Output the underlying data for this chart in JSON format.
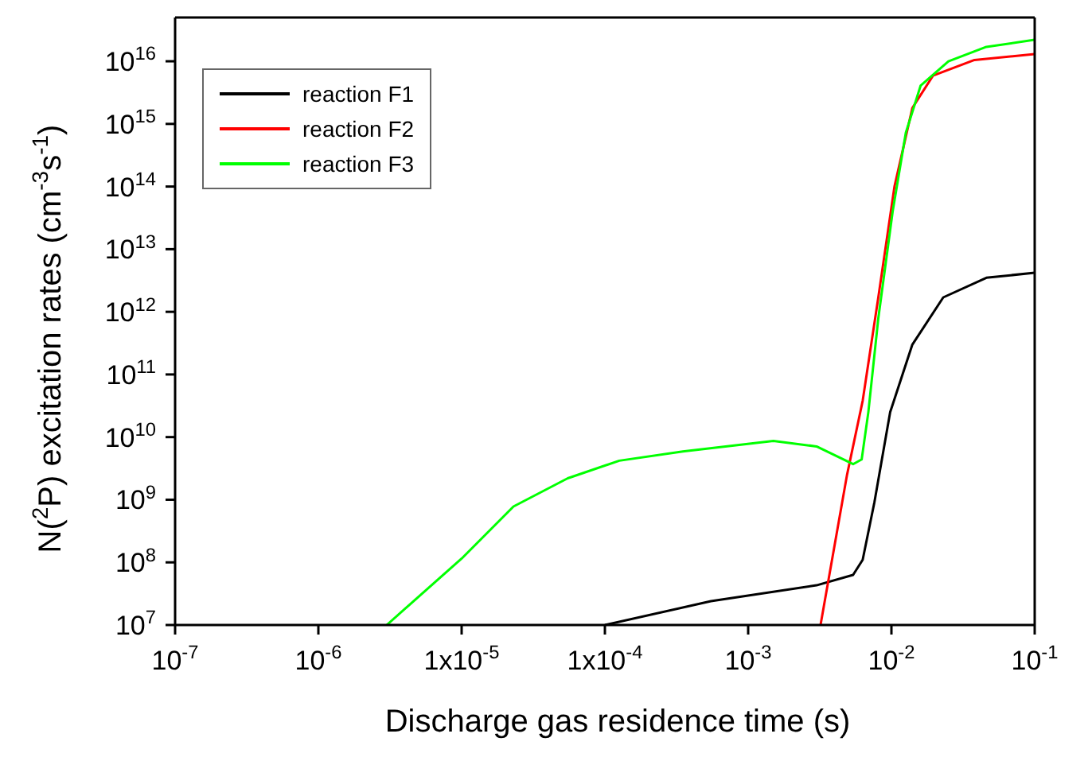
{
  "chart_data": {
    "type": "line",
    "xlabel": "Discharge gas residence time (s)",
    "ylabel": "N($^{2}$P) excitation rates (cm$^{-3}$s$^{-1}$)",
    "log": "xy",
    "xlim": [
      1e-07,
      0.1
    ],
    "ylim": [
      10000000.0,
      5e+16
    ],
    "xticks": [
      {
        "value": 1e-07,
        "label": "10$^{-7}$"
      },
      {
        "value": 1e-06,
        "label": "10$^{-6}$"
      },
      {
        "value": 1e-05,
        "label": "1x10$^{-5}$"
      },
      {
        "value": 0.0001,
        "label": "1x10$^{-4}$"
      },
      {
        "value": 0.001,
        "label": "10$^{-3}$"
      },
      {
        "value": 0.01,
        "label": "10$^{-2}$"
      },
      {
        "value": 0.1,
        "label": "10$^{-1}$"
      }
    ],
    "yticks": [
      {
        "value": 10000000.0,
        "label": "10$^{7}$"
      },
      {
        "value": 100000000.0,
        "label": "10$^{8}$"
      },
      {
        "value": 1000000000.0,
        "label": "10$^{9}$"
      },
      {
        "value": 10000000000.0,
        "label": "10$^{10}$"
      },
      {
        "value": 100000000000.0,
        "label": "10$^{11}$"
      },
      {
        "value": 1000000000000.0,
        "label": "10$^{12}$"
      },
      {
        "value": 10000000000000.0,
        "label": "10$^{13}$"
      },
      {
        "value": 100000000000000.0,
        "label": "10$^{14}$"
      },
      {
        "value": 1000000000000000.0,
        "label": "10$^{15}$"
      },
      {
        "value": 1e+16,
        "label": "10$^{16}$"
      }
    ],
    "legend": "top left",
    "marker": "none",
    "line_style": "solid",
    "series": [
      {
        "name": "reaction F1",
        "color": "#000000",
        "x": [
          0.0001,
          0.00055,
          0.003,
          0.0054,
          0.0063,
          0.0076,
          0.0098,
          0.014,
          0.023,
          0.046,
          0.1
        ],
        "values": [
          10000000.0,
          24000000.0,
          43000000.0,
          63000000.0,
          110000000.0,
          900000000.0,
          25000000000.0,
          300000000000.0,
          1700000000000.0,
          3500000000000.0,
          4200000000000.0
        ]
      },
      {
        "name": "reaction F2",
        "color": "#ff0000",
        "x": [
          0.0032,
          0.0049,
          0.0063,
          0.0081,
          0.0105,
          0.014,
          0.0195,
          0.038,
          0.1
        ],
        "values": [
          10000000.0,
          2500000000.0,
          38000000000.0,
          1700000000000.0,
          100000000000000.0,
          1800000000000000.0,
          5900000000000000.0,
          1.05e+16,
          1.3e+16
        ]
      },
      {
        "name": "reaction F3",
        "color": "#00ff00",
        "x": [
          3e-06,
          1e-05,
          2.3e-05,
          5.5e-05,
          0.000126,
          0.00035,
          0.0015,
          0.003,
          0.0054,
          0.0062,
          0.0069,
          0.0081,
          0.0102,
          0.0126,
          0.016,
          0.025,
          0.046,
          0.1
        ],
        "values": [
          10000000.0,
          115000000.0,
          780000000.0,
          2200000000.0,
          4200000000.0,
          5900000000.0,
          8700000000.0,
          7100000000.0,
          3700000000.0,
          4400000000.0,
          25000000000.0,
          790000000000.0,
          40000000000000.0,
          720000000000000.0,
          4100000000000000.0,
          1e+16,
          1.7e+16,
          2.2e+16
        ]
      }
    ]
  }
}
